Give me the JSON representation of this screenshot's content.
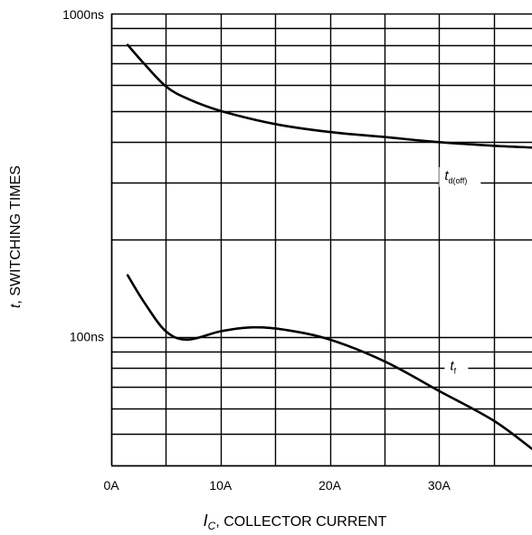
{
  "chart_data": {
    "type": "line",
    "x_unit": "A",
    "y_scale": "log",
    "xlim": [
      0,
      38.5
    ],
    "ylim": [
      40,
      1000
    ],
    "grid": true,
    "x_ticks": [
      {
        "value": 0,
        "label": "0A"
      },
      {
        "value": 10,
        "label": "10A"
      },
      {
        "value": 20,
        "label": "20A"
      },
      {
        "value": 30,
        "label": "30A"
      }
    ],
    "y_ticks": [
      {
        "value": 100,
        "label": "100ns"
      },
      {
        "value": 1000,
        "label": "1000ns"
      }
    ],
    "xlabel": {
      "symbol": "I",
      "subscript": "C",
      "rest": ", COLLECTOR CURRENT"
    },
    "ylabel": {
      "symbol": "t",
      "rest": ", SWITCHING TIMES"
    },
    "series": [
      {
        "name": "t_d(off)",
        "label_main": "t",
        "label_sub": "d(off)",
        "label_at": {
          "x": 30.5,
          "y": 310
        },
        "points": [
          [
            1.5,
            800
          ],
          [
            3,
            700
          ],
          [
            5,
            595
          ],
          [
            7,
            545
          ],
          [
            10,
            500
          ],
          [
            15,
            455
          ],
          [
            20,
            430
          ],
          [
            25,
            415
          ],
          [
            30,
            400
          ],
          [
            35,
            390
          ],
          [
            38.5,
            385
          ]
        ]
      },
      {
        "name": "t_f",
        "label_main": "t",
        "label_sub": "f",
        "label_at": {
          "x": 31,
          "y": 80
        },
        "points": [
          [
            1.5,
            155
          ],
          [
            3,
            128
          ],
          [
            5,
            104
          ],
          [
            7,
            98
          ],
          [
            10,
            104
          ],
          [
            13,
            107
          ],
          [
            16,
            105
          ],
          [
            20,
            98
          ],
          [
            25,
            84
          ],
          [
            30,
            68
          ],
          [
            35,
            55
          ],
          [
            38.5,
            45
          ]
        ]
      }
    ]
  }
}
